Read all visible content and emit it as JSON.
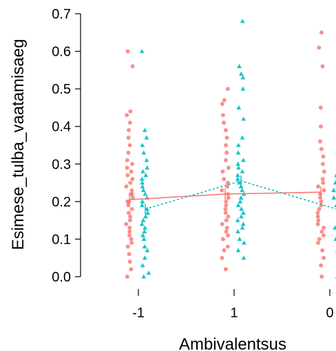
{
  "chart_data": {
    "type": "scatter",
    "title": "",
    "xlabel": "Ambivalentsus",
    "ylabel": "Esimese_tulba_vaatamisaeg",
    "categories": [
      "-1",
      "1",
      "0"
    ],
    "ylim": [
      0.0,
      0.7
    ],
    "yticks": [
      "0.0",
      "0.1",
      "0.2",
      "0.3",
      "0.4",
      "0.5",
      "0.6",
      "0.7"
    ],
    "grid": false,
    "legend": "none",
    "series": [
      {
        "color": "#F8766D",
        "marker": "circle",
        "line": "solid",
        "means": [
          0.205,
          0.22,
          0.225
        ],
        "points": [
          [
            0.0,
            0.02,
            0.04,
            0.06,
            0.08,
            0.09,
            0.1,
            0.11,
            0.12,
            0.13,
            0.14,
            0.15,
            0.16,
            0.17,
            0.18,
            0.19,
            0.2,
            0.2,
            0.21,
            0.22,
            0.22,
            0.23,
            0.24,
            0.25,
            0.26,
            0.27,
            0.28,
            0.29,
            0.3,
            0.31,
            0.33,
            0.35,
            0.37,
            0.39,
            0.41,
            0.43,
            0.44,
            0.56,
            0.6
          ],
          [
            0.02,
            0.05,
            0.07,
            0.08,
            0.1,
            0.11,
            0.12,
            0.13,
            0.14,
            0.15,
            0.16,
            0.17,
            0.18,
            0.19,
            0.2,
            0.21,
            0.22,
            0.23,
            0.24,
            0.25,
            0.26,
            0.28,
            0.29,
            0.31,
            0.33,
            0.35,
            0.37,
            0.39,
            0.41,
            0.43,
            0.46,
            0.47,
            0.5
          ],
          [
            0.0,
            0.03,
            0.05,
            0.07,
            0.09,
            0.1,
            0.11,
            0.12,
            0.13,
            0.14,
            0.15,
            0.16,
            0.17,
            0.18,
            0.19,
            0.2,
            0.21,
            0.22,
            0.23,
            0.24,
            0.25,
            0.26,
            0.28,
            0.3,
            0.32,
            0.34,
            0.36,
            0.4,
            0.45,
            0.56,
            0.61,
            0.65
          ]
        ]
      },
      {
        "color": "#00BFC4",
        "marker": "triangle",
        "line": "dotted",
        "means": [
          0.18,
          0.255,
          0.18
        ],
        "points": [
          [
            0.0,
            0.01,
            0.03,
            0.05,
            0.07,
            0.08,
            0.1,
            0.11,
            0.12,
            0.13,
            0.14,
            0.15,
            0.16,
            0.17,
            0.18,
            0.19,
            0.2,
            0.21,
            0.22,
            0.23,
            0.24,
            0.25,
            0.26,
            0.27,
            0.28,
            0.29,
            0.31,
            0.33,
            0.35,
            0.37,
            0.39,
            0.6
          ],
          [
            0.05,
            0.07,
            0.09,
            0.1,
            0.12,
            0.13,
            0.14,
            0.15,
            0.16,
            0.17,
            0.18,
            0.19,
            0.2,
            0.21,
            0.22,
            0.23,
            0.24,
            0.25,
            0.26,
            0.27,
            0.28,
            0.29,
            0.3,
            0.31,
            0.33,
            0.35,
            0.37,
            0.42,
            0.45,
            0.5,
            0.53,
            0.54,
            0.56,
            0.68
          ],
          [
            0.0,
            0.04,
            0.07,
            0.1,
            0.13,
            0.15,
            0.17,
            0.19,
            0.21,
            0.23,
            0.25,
            0.27,
            0.33
          ]
        ]
      }
    ]
  }
}
